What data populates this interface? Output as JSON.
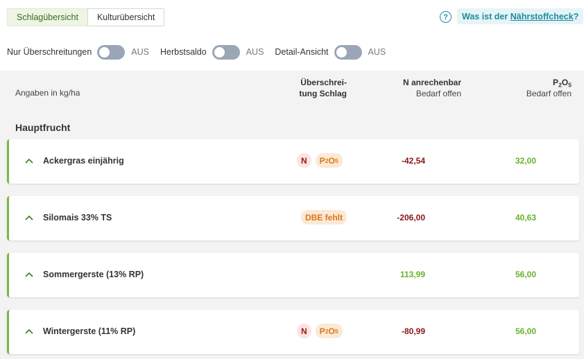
{
  "tabs": [
    {
      "label": "Schlagübersicht",
      "active": false
    },
    {
      "label": "Kulturübersicht",
      "active": true
    }
  ],
  "help": {
    "prefix": "Was ist der ",
    "link": "Nährstoffcheck",
    "suffix": "?",
    "icon": "?"
  },
  "toggles": [
    {
      "label": "Nur Überschreitungen",
      "state": "AUS"
    },
    {
      "label": "Herbstsaldo",
      "state": "AUS"
    },
    {
      "label": "Detail-Ansicht",
      "state": "AUS"
    }
  ],
  "table_header": {
    "unit_note": "Angaben in kg/ha",
    "ueberschreitung_line1": "Überschrei-",
    "ueberschreitung_line2": "tung Schlag",
    "n_line1": "N anrechenbar",
    "n_line2": "Bedarf offen",
    "p_base": "P",
    "p_sub1": "2",
    "p_mid": "O",
    "p_sub2": "5",
    "p_line2": "Bedarf offen"
  },
  "section": {
    "title": "Hauptfrucht"
  },
  "rows": [
    {
      "crop": "Ackergras einjährig",
      "badge_n": "N",
      "badge_p": "P",
      "badge_p_sub1": "2",
      "badge_p_mid": "O",
      "badge_p_sub2": "5",
      "badge_dbe": "",
      "n_value": "-42,54",
      "p_value": "32,00"
    },
    {
      "crop": "Silomais 33% TS",
      "badge_n": "",
      "badge_p": "",
      "badge_dbe": "DBE fehlt",
      "n_value": "-206,00",
      "p_value": "40,63"
    },
    {
      "crop": "Sommergerste (13% RP)",
      "badge_n": "",
      "badge_p": "",
      "badge_dbe": "",
      "n_value": "113,99",
      "p_value": "56,00"
    },
    {
      "crop": "Wintergerste (11% RP)",
      "badge_n": "N",
      "badge_p": "P",
      "badge_p_sub1": "2",
      "badge_p_mid": "O",
      "badge_p_sub2": "5",
      "badge_dbe": "",
      "n_value": "-80,99",
      "p_value": "56,00"
    }
  ],
  "colors": {
    "accent_green": "#7ab648",
    "value_green": "#66b22c",
    "value_red": "#8c1515",
    "help_teal": "#1e8aa1",
    "switch_off": "#9aa6b5"
  }
}
